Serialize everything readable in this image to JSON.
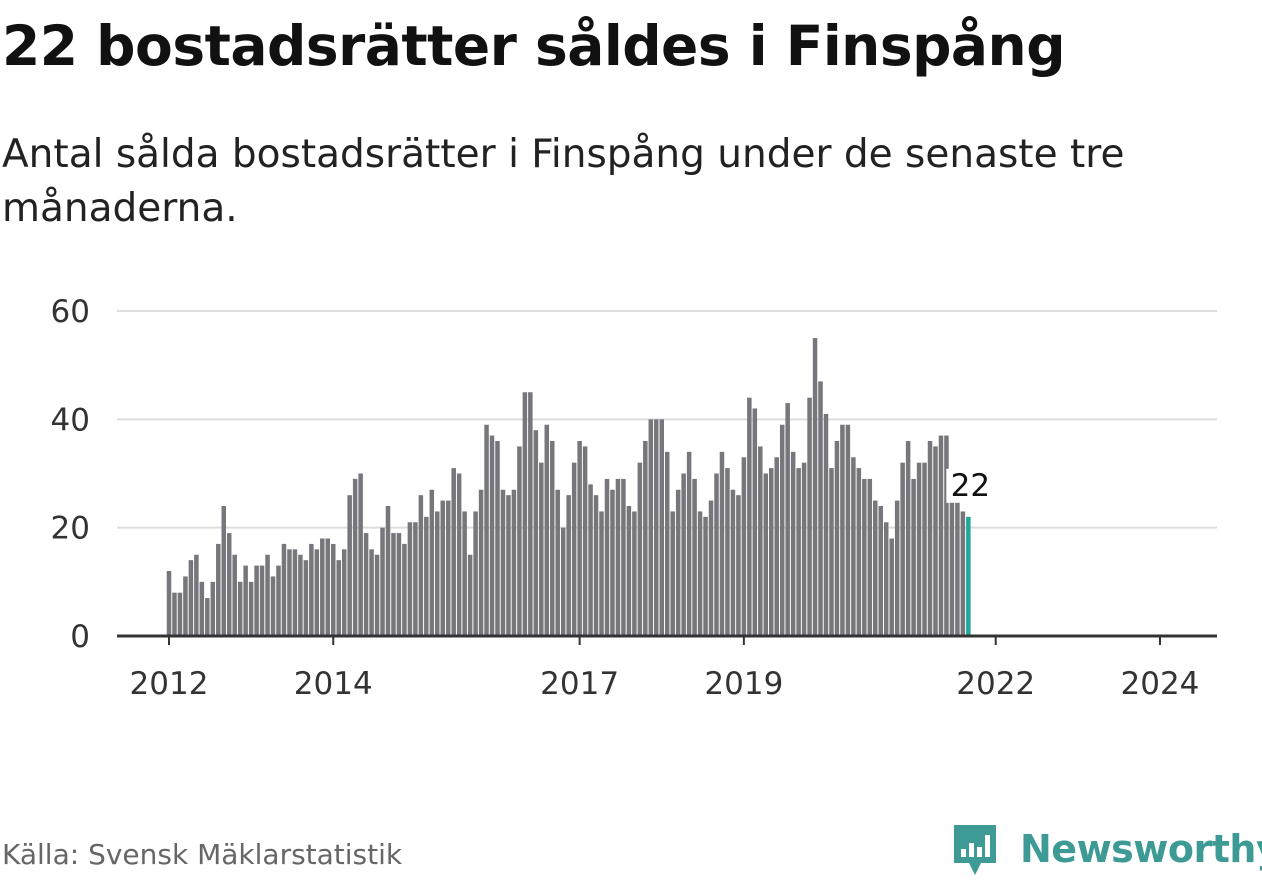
{
  "header": {
    "title": "22 bostadsrätter såldes i Finspång",
    "subtitle": "Antal sålda bostadsrätter i Finspång under de senaste tre månaderna."
  },
  "footer": {
    "source": "Källa: Svensk Mäklarstatistik",
    "brand": "Newsworthy"
  },
  "colors": {
    "bar": "#77767c",
    "highlight": "#20a89a",
    "grid": "#dddddd",
    "axis": "#333333",
    "brand": "#3d9a94"
  },
  "chart_data": {
    "type": "bar",
    "title": "Antal sålda bostadsrätter i Finspång",
    "xlabel": "",
    "ylabel": "",
    "ylim": [
      0,
      60
    ],
    "yticks": [
      0,
      20,
      40,
      60
    ],
    "xticks": [
      {
        "label": "2012",
        "index": 0
      },
      {
        "label": "2014",
        "index": 30
      },
      {
        "label": "2017",
        "index": 75
      },
      {
        "label": "2019",
        "index": 105
      },
      {
        "label": "2022",
        "index": 151
      },
      {
        "label": "2024",
        "index": 181
      }
    ],
    "last_value_label": "22",
    "grid": true,
    "values": [
      12,
      8,
      8,
      11,
      14,
      15,
      10,
      7,
      10,
      17,
      24,
      19,
      15,
      10,
      13,
      10,
      13,
      13,
      15,
      11,
      13,
      17,
      16,
      16,
      15,
      14,
      17,
      16,
      18,
      18,
      17,
      14,
      16,
      26,
      29,
      30,
      19,
      16,
      15,
      20,
      24,
      19,
      19,
      17,
      21,
      21,
      26,
      22,
      27,
      23,
      25,
      25,
      31,
      30,
      23,
      15,
      23,
      27,
      39,
      37,
      36,
      27,
      26,
      27,
      35,
      45,
      45,
      38,
      32,
      39,
      36,
      27,
      20,
      26,
      32,
      36,
      35,
      28,
      26,
      23,
      29,
      27,
      29,
      29,
      24,
      23,
      32,
      36,
      40,
      40,
      40,
      34,
      23,
      27,
      30,
      34,
      29,
      23,
      22,
      25,
      30,
      34,
      31,
      27,
      26,
      33,
      44,
      42,
      35,
      30,
      31,
      33,
      39,
      43,
      34,
      31,
      32,
      44,
      55,
      47,
      41,
      31,
      36,
      39,
      39,
      33,
      31,
      29,
      29,
      25,
      24,
      21,
      18,
      25,
      32,
      36,
      29,
      32,
      32,
      36,
      35,
      37,
      37,
      25,
      25,
      23,
      22
    ]
  }
}
